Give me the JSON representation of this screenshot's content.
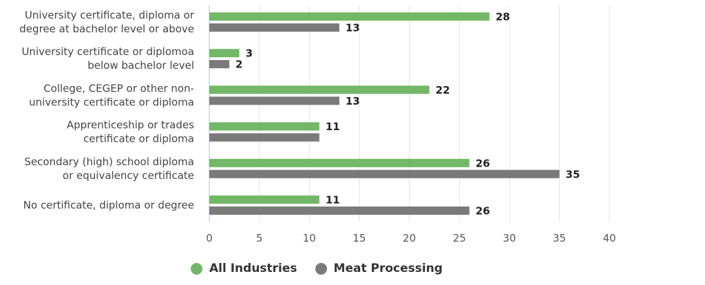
{
  "chart_data": {
    "type": "bar",
    "orientation": "horizontal",
    "categories": [
      [
        "University certificate, diploma or",
        "degree at bachelor level or above"
      ],
      [
        "University certificate or diplomoa",
        "below bachelor level"
      ],
      [
        "College, CEGEP or other non-",
        "university certificate or diploma"
      ],
      [
        "Apprenticeship or trades",
        "certificate or diploma"
      ],
      [
        "Secondary (high) school diploma",
        "or equivalency certificate"
      ],
      [
        "No certificate, diploma or degree"
      ]
    ],
    "series": [
      {
        "name": "All Industries",
        "color": "#72b866",
        "values": [
          28,
          3,
          22,
          11,
          26,
          11
        ],
        "labels": [
          "28",
          "3",
          "22",
          "11",
          "26",
          "11"
        ]
      },
      {
        "name": "Meat Processing",
        "color": "#7a7a7a",
        "values": [
          13,
          2,
          13,
          11,
          35,
          26
        ],
        "labels": [
          "13",
          "2",
          "13",
          "",
          "35",
          "26"
        ]
      }
    ],
    "xlim": [
      0,
      40
    ],
    "ticks": [
      "0",
      "5",
      "10",
      "15",
      "20",
      "25",
      "30",
      "35",
      "40"
    ],
    "grid": true,
    "legend_position": "bottom"
  },
  "legend": {
    "items": [
      {
        "label": "All Industries",
        "color": "#72b866"
      },
      {
        "label": "Meat Processing",
        "color": "#7a7a7a"
      }
    ]
  }
}
